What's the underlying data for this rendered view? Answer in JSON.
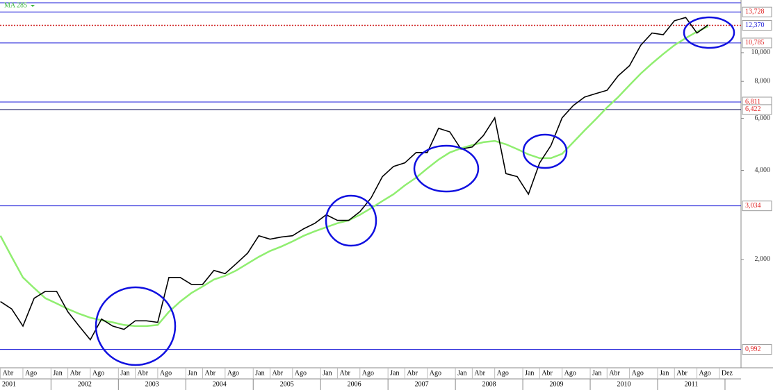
{
  "chart_data": {
    "type": "line",
    "log_scale": true,
    "ylim": [
      860,
      15070
    ],
    "yticks": [
      {
        "value": 2000,
        "label": "2,000"
      },
      {
        "value": 4000,
        "label": "4,000"
      },
      {
        "value": 6000,
        "label": "6,000"
      },
      {
        "value": 8000,
        "label": "8,000"
      },
      {
        "value": 10000,
        "label": "10,000"
      }
    ],
    "x": [
      "2001-04",
      "2001-06",
      "2001-08",
      "2001-10",
      "2001-12",
      "2002-02",
      "2002-04",
      "2002-06",
      "2002-08",
      "2002-10",
      "2002-12",
      "2003-02",
      "2003-04",
      "2003-06",
      "2003-08",
      "2003-10",
      "2003-12",
      "2004-02",
      "2004-04",
      "2004-06",
      "2004-08",
      "2004-10",
      "2004-12",
      "2005-02",
      "2005-04",
      "2005-06",
      "2005-08",
      "2005-10",
      "2005-12",
      "2006-02",
      "2006-04",
      "2006-06",
      "2006-08",
      "2006-10",
      "2006-12",
      "2007-02",
      "2007-04",
      "2007-06",
      "2007-08",
      "2007-10",
      "2007-12",
      "2008-02",
      "2008-04",
      "2008-06",
      "2008-08",
      "2008-10",
      "2008-12",
      "2009-02",
      "2009-04",
      "2009-06",
      "2009-08",
      "2009-10",
      "2009-12",
      "2010-02",
      "2010-04",
      "2010-06",
      "2010-08",
      "2010-10",
      "2010-12",
      "2011-02",
      "2011-04",
      "2011-06",
      "2011-08",
      "2011-10"
    ],
    "series": [
      {
        "color": "#000000",
        "values": [
          1440,
          1360,
          1190,
          1478,
          1560,
          1560,
          1330,
          1190,
          1070,
          1257,
          1190,
          1160,
          1240,
          1240,
          1225,
          1738,
          1738,
          1646,
          1646,
          1835,
          1790,
          1936,
          2100,
          2404,
          2340,
          2380,
          2404,
          2540,
          2650,
          2830,
          2710,
          2710,
          2900,
          3230,
          3810,
          4126,
          4240,
          4596,
          4596,
          5550,
          5400,
          4720,
          4800,
          5250,
          6020,
          3900,
          3810,
          3324,
          4240,
          4850,
          6020,
          6630,
          7080,
          7270,
          7460,
          8360,
          9040,
          10600,
          11650,
          11500,
          12820,
          13150,
          11650,
          12420
        ]
      },
      {
        "name": "MA 285",
        "color": "#90ee70",
        "values": [
          2404,
          2040,
          1738,
          1600,
          1478,
          1420,
          1360,
          1310,
          1270,
          1245,
          1225,
          1200,
          1190,
          1190,
          1200,
          1330,
          1440,
          1540,
          1620,
          1710,
          1760,
          1835,
          1936,
          2040,
          2135,
          2210,
          2300,
          2404,
          2490,
          2570,
          2650,
          2710,
          2830,
          2982,
          3150,
          3324,
          3560,
          3780,
          4060,
          4350,
          4596,
          4750,
          4870,
          4980,
          5030,
          4900,
          4720,
          4530,
          4400,
          4400,
          4550,
          4980,
          5460,
          5960,
          6530,
          7080,
          7770,
          8500,
          9190,
          9900,
          10600,
          11200,
          11770,
          12270
        ]
      }
    ],
    "levels": [
      {
        "value": 13728,
        "label": "13,728",
        "line_color": "#1a1ad8",
        "text_color": "#e02020",
        "style": "solid"
      },
      {
        "value": 12370,
        "label": "12,370",
        "line_color": "#d02020",
        "text_color": "#1a1ad8",
        "style": "dotted"
      },
      {
        "value": 10785,
        "label": "10,785",
        "line_color": "#1a1ad8",
        "text_color": "#e02020",
        "style": "solid"
      },
      {
        "value": 6811,
        "label": "6,811",
        "line_color": "#1a1ad8",
        "text_color": "#e02020",
        "style": "solid"
      },
      {
        "value": 6422,
        "label": "6,422",
        "line_color": "#1a1a60",
        "text_color": "#e02020",
        "style": "solid"
      },
      {
        "value": 3034,
        "label": "3,034",
        "line_color": "#1a1ad8",
        "text_color": "#e02020",
        "style": "solid"
      },
      {
        "value": 992,
        "label": "0,992",
        "line_color": "#1a1ad8",
        "text_color": "#e02020",
        "style": "solid"
      }
    ],
    "xticks": [
      {
        "value": "2001-04",
        "label": "Abr"
      },
      {
        "value": "2001-08",
        "label": "Ago"
      },
      {
        "value": "2002-01",
        "label": "Jan"
      },
      {
        "value": "2002-04",
        "label": "Abr"
      },
      {
        "value": "2002-08",
        "label": "Ago"
      },
      {
        "value": "2003-01",
        "label": "Jan"
      },
      {
        "value": "2003-04",
        "label": "Abr"
      },
      {
        "value": "2003-08",
        "label": "Ago"
      },
      {
        "value": "2004-01",
        "label": "Jan"
      },
      {
        "value": "2004-04",
        "label": "Abr"
      },
      {
        "value": "2004-08",
        "label": "Ago"
      },
      {
        "value": "2005-01",
        "label": "Jan"
      },
      {
        "value": "2005-04",
        "label": "Abr"
      },
      {
        "value": "2005-08",
        "label": "Ago"
      },
      {
        "value": "2006-01",
        "label": "Jan"
      },
      {
        "value": "2006-04",
        "label": "Abr"
      },
      {
        "value": "2006-08",
        "label": "Ago"
      },
      {
        "value": "2007-01",
        "label": "Jan"
      },
      {
        "value": "2007-04",
        "label": "Abr"
      },
      {
        "value": "2007-08",
        "label": "Ago"
      },
      {
        "value": "2008-01",
        "label": "Jan"
      },
      {
        "value": "2008-04",
        "label": "Abr"
      },
      {
        "value": "2008-08",
        "label": "Ago"
      },
      {
        "value": "2009-01",
        "label": "Jan"
      },
      {
        "value": "2009-04",
        "label": "Abr"
      },
      {
        "value": "2009-08",
        "label": "Ago"
      },
      {
        "value": "2010-01",
        "label": "Jan"
      },
      {
        "value": "2010-04",
        "label": "Abr"
      },
      {
        "value": "2010-08",
        "label": "Ago"
      },
      {
        "value": "2011-01",
        "label": "Jan"
      },
      {
        "value": "2011-04",
        "label": "Abr"
      },
      {
        "value": "2011-08",
        "label": "Ago"
      },
      {
        "value": "2011-12",
        "label": "Dez"
      }
    ],
    "years": [
      "2001",
      "2002",
      "2003",
      "2004",
      "2005",
      "2006",
      "2007",
      "2008",
      "2009",
      "2010",
      "2011"
    ]
  }
}
